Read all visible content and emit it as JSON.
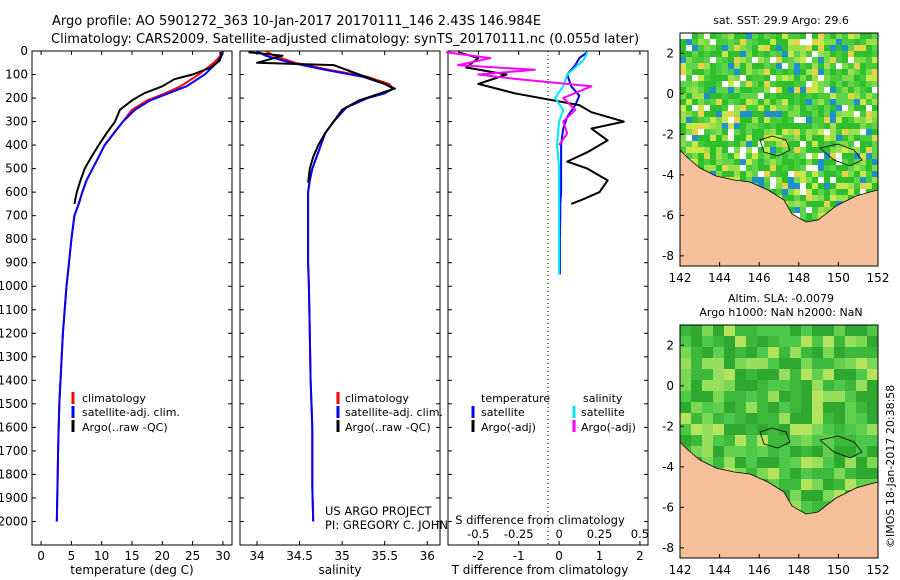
{
  "header": {
    "line1": "Argo profile: AO 5901272_363 10-Jan-2017 20170111_146 2.43S 146.984E",
    "line2": "Climatology: CARS2009. Satellite-adjusted climatology: synTS_20170111.nc (0.055d later)"
  },
  "sst_title": "sat. SST: 29.9 Argo: 29.6",
  "sla_title_1": "Altim. SLA: -0.0079",
  "sla_title_2": "Argo h1000: NaN h2000: NaN",
  "credit_1": "US ARGO PROJECT",
  "credit_2": "PI: GREGORY C. JOHNSON",
  "imos_stamp": "©IMOS 18-Jan-2017 20:38:58",
  "colors": {
    "climatology": "#ff0000",
    "satellite": "#0000ff",
    "argo": "#000000",
    "sal_satellite": "#00e5ff",
    "sal_argo": "#ff00ff",
    "land": "#f5c09a"
  },
  "chart_data": [
    {
      "id": "temperature",
      "type": "line",
      "xlabel": "temperature (deg C)",
      "ylabel": "",
      "xlim": [
        -1.5,
        31.5
      ],
      "ylim": [
        2100,
        0
      ],
      "xticks": [
        0,
        5,
        10,
        15,
        20,
        25,
        30
      ],
      "yticks": [
        0,
        100,
        200,
        300,
        400,
        500,
        600,
        700,
        800,
        900,
        1000,
        1100,
        1200,
        1300,
        1400,
        1500,
        1600,
        1700,
        1800,
        1900,
        2000
      ],
      "legend": {
        "position": "lower-middle",
        "entries": [
          "climatology",
          "satellite-adj. clim.",
          "Argo(..raw -QC)"
        ]
      },
      "series": [
        {
          "name": "climatology",
          "color": "#ff0000",
          "x": [
            29.9,
            29.6,
            28.5,
            26,
            23,
            20.5,
            17.5,
            15,
            13.5,
            12,
            10.5,
            9.5,
            8.5,
            7.5,
            6.8,
            6.2,
            5.5,
            5,
            4.6,
            4.2,
            3.9,
            3.6,
            3.4,
            3.2,
            3,
            2.9,
            2.8,
            2.7,
            2.6
          ],
          "y": [
            0,
            20,
            50,
            100,
            150,
            180,
            210,
            250,
            300,
            350,
            400,
            450,
            500,
            550,
            600,
            650,
            700,
            800,
            900,
            1000,
            1100,
            1200,
            1300,
            1400,
            1500,
            1600,
            1700,
            1850,
            2000
          ]
        },
        {
          "name": "satellite-adj. clim.",
          "color": "#0000ff",
          "x": [
            30,
            29.8,
            29,
            27,
            24,
            21,
            18,
            15.5,
            13.5,
            12,
            10.5,
            9.5,
            8.5,
            7.5,
            6.8,
            6.2,
            5.5,
            5,
            4.6,
            4.2,
            3.9,
            3.6,
            3.4,
            3.2,
            3,
            2.9,
            2.8,
            2.7,
            2.6
          ],
          "y": [
            0,
            20,
            50,
            100,
            150,
            180,
            210,
            250,
            300,
            350,
            400,
            450,
            500,
            550,
            600,
            650,
            700,
            800,
            900,
            1000,
            1100,
            1200,
            1300,
            1400,
            1500,
            1600,
            1700,
            1850,
            2000
          ]
        },
        {
          "name": "Argo(..raw -QC)",
          "color": "#000000",
          "x": [
            29.5,
            29.7,
            29.5,
            28,
            25,
            22,
            20,
            17,
            15,
            13,
            12.2,
            10.8,
            9.5,
            8.3,
            7.2,
            6.5,
            5.9,
            5.5
          ],
          "y": [
            5,
            20,
            40,
            70,
            100,
            120,
            150,
            180,
            210,
            250,
            300,
            350,
            400,
            450,
            500,
            550,
            600,
            650
          ]
        }
      ]
    },
    {
      "id": "salinity",
      "type": "line",
      "xlabel": "salinity",
      "ylabel": "",
      "xlim": [
        33.8,
        36.15
      ],
      "ylim": [
        2100,
        0
      ],
      "xticks": [
        34,
        34.5,
        35,
        35.5,
        36
      ],
      "legend": {
        "position": "lower-middle",
        "entries": [
          "climatology",
          "satellite-adj. clim.",
          "Argo(..raw -QC)"
        ]
      },
      "series": [
        {
          "name": "climatology",
          "color": "#ff0000",
          "x": [
            34.1,
            34.2,
            34.45,
            34.85,
            35.3,
            35.55,
            35.6,
            35.5,
            35.3,
            35.05,
            34.9,
            34.8,
            34.75,
            34.7,
            34.65,
            34.62,
            34.6,
            34.6,
            34.6,
            34.6,
            34.61,
            34.62,
            34.63,
            34.64,
            34.65,
            34.65,
            34.65,
            34.66
          ],
          "y": [
            0,
            20,
            50,
            80,
            110,
            140,
            160,
            180,
            200,
            240,
            300,
            350,
            400,
            450,
            500,
            550,
            600,
            700,
            800,
            900,
            1000,
            1200,
            1400,
            1500,
            1600,
            1700,
            1850,
            2000
          ]
        },
        {
          "name": "satellite-adj. clim.",
          "color": "#0000ff",
          "x": [
            34.0,
            34.1,
            34.4,
            34.8,
            35.25,
            35.5,
            35.6,
            35.5,
            35.3,
            35.05,
            34.9,
            34.8,
            34.75,
            34.7,
            34.65,
            34.62,
            34.6,
            34.6,
            34.6,
            34.6,
            34.61,
            34.62,
            34.63,
            34.64,
            34.65,
            34.65,
            34.65,
            34.66
          ],
          "y": [
            0,
            20,
            50,
            80,
            110,
            140,
            160,
            180,
            200,
            240,
            300,
            350,
            400,
            450,
            500,
            550,
            600,
            700,
            800,
            900,
            1000,
            1200,
            1400,
            1500,
            1600,
            1700,
            1850,
            2000
          ]
        },
        {
          "name": "Argo(..raw -QC)",
          "color": "#000000",
          "x": [
            33.9,
            34.3,
            34.0,
            34.9,
            35.2,
            35.5,
            35.62,
            35.45,
            35.2,
            35.0,
            34.9,
            34.8,
            34.72,
            34.66,
            34.62,
            34.6
          ],
          "y": [
            5,
            20,
            50,
            60,
            100,
            140,
            160,
            180,
            210,
            250,
            300,
            350,
            400,
            450,
            500,
            560
          ]
        }
      ]
    },
    {
      "id": "difference",
      "type": "line",
      "xlabel": "T difference from climatology",
      "xlabel_top": "S difference from climatology",
      "ylabel": "",
      "xlim": [
        -2.75,
        2.2
      ],
      "ylim": [
        2100,
        0
      ],
      "xticks_bottom": [
        -2,
        -1,
        0,
        1,
        2
      ],
      "xtick_labels_top": [
        "-0.5",
        "-0.25",
        "0",
        "0.25",
        "0.5"
      ],
      "legend": {
        "position": "lower-middle",
        "entries": [
          "temperature",
          "satellite",
          "Argo(-adj)",
          "salinity",
          "satellite",
          "Argo(-adj)"
        ]
      },
      "series": [
        {
          "name": "T satellite",
          "color": "#0000ff",
          "x": [
            0.7,
            0.5,
            0.4,
            0.2,
            0.3,
            0.5,
            0.4,
            0.2,
            0.1,
            0.05,
            0.05,
            0.05,
            0.03,
            0.03,
            0.02,
            0.02,
            0.02
          ],
          "y": [
            5,
            30,
            60,
            100,
            150,
            190,
            230,
            280,
            330,
            400,
            500,
            600,
            650,
            700,
            800,
            900,
            950
          ]
        },
        {
          "name": "T Argo(-adj)",
          "color": "#000000",
          "x": [
            -2.5,
            -2.0,
            -2.3,
            -1.3,
            -2.0,
            -1.1,
            0.5,
            0.8,
            1.6,
            0.8,
            1.2,
            0.7,
            0.2,
            0.7,
            1.2,
            1.0,
            0.6,
            0.3
          ],
          "y": [
            5,
            30,
            70,
            100,
            140,
            180,
            230,
            260,
            300,
            330,
            380,
            430,
            470,
            500,
            550,
            600,
            630,
            650
          ]
        },
        {
          "name": "S satellite",
          "color": "#00e5ff",
          "x": [
            0.7,
            0.6,
            0.2,
            0.1,
            -0.1,
            0.1,
            0.0,
            -0.05,
            0.0,
            0.0,
            0.0,
            0.0,
            0.0,
            0.0
          ],
          "y": [
            5,
            40,
            100,
            150,
            200,
            250,
            300,
            400,
            500,
            600,
            700,
            800,
            900,
            950
          ]
        },
        {
          "name": "S Argo(-adj)",
          "color": "#ff00ff",
          "x": [
            -2.8,
            -1.7,
            -2.5,
            -0.6,
            -2.0,
            -1.0,
            0.8,
            0.1,
            0.4,
            0.1,
            0.2,
            0.0
          ],
          "y": [
            5,
            30,
            60,
            80,
            100,
            120,
            150,
            200,
            250,
            300,
            350,
            400
          ]
        }
      ]
    },
    {
      "id": "sst_map",
      "type": "heatmap",
      "title": "sat. SST: 29.9 Argo: 29.6",
      "xlim": [
        142,
        152
      ],
      "ylim": [
        -8.5,
        3
      ],
      "xticks": [
        142,
        144,
        146,
        148,
        150,
        152
      ],
      "yticks": [
        2,
        0,
        -2,
        -4,
        -6,
        -8
      ]
    },
    {
      "id": "sla_map",
      "type": "heatmap",
      "title": "Altim. SLA: -0.0079",
      "xlim": [
        142,
        152
      ],
      "ylim": [
        -8.5,
        3
      ],
      "xticks": [
        142,
        144,
        146,
        148,
        150,
        152
      ],
      "yticks": [
        2,
        0,
        -2,
        -4,
        -6,
        -8
      ]
    }
  ]
}
